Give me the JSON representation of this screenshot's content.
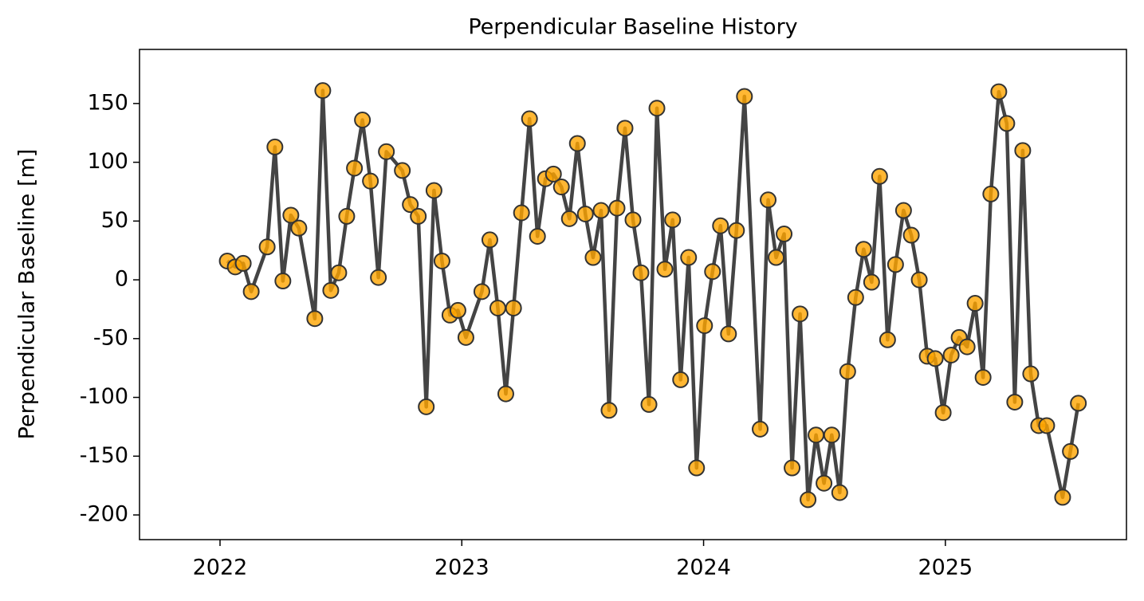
{
  "chart_data": {
    "type": "line",
    "title": "Perpendicular Baseline History",
    "ylabel": "Perpendicular Baseline [m]",
    "x": [
      2022.03,
      2022.063,
      2022.096,
      2022.129,
      2022.195,
      2022.227,
      2022.26,
      2022.293,
      2022.326,
      2022.392,
      2022.425,
      2022.458,
      2022.491,
      2022.524,
      2022.556,
      2022.589,
      2022.622,
      2022.655,
      2022.688,
      2022.754,
      2022.787,
      2022.82,
      2022.853,
      2022.885,
      2022.918,
      2022.951,
      2022.984,
      2023.017,
      2023.083,
      2023.116,
      2023.149,
      2023.182,
      2023.214,
      2023.247,
      2023.28,
      2023.313,
      2023.346,
      2023.379,
      2023.412,
      2023.445,
      2023.478,
      2023.511,
      2023.543,
      2023.576,
      2023.609,
      2023.642,
      2023.675,
      2023.708,
      2023.741,
      2023.774,
      2023.807,
      2023.84,
      2023.872,
      2023.905,
      2023.938,
      2023.971,
      2024.004,
      2024.037,
      2024.07,
      2024.103,
      2024.136,
      2024.169,
      2024.234,
      2024.267,
      2024.3,
      2024.333,
      2024.366,
      2024.399,
      2024.432,
      2024.465,
      2024.498,
      2024.53,
      2024.563,
      2024.596,
      2024.629,
      2024.662,
      2024.695,
      2024.728,
      2024.761,
      2024.794,
      2024.827,
      2024.859,
      2024.892,
      2024.925,
      2024.958,
      2024.991,
      2025.024,
      2025.057,
      2025.09,
      2025.123,
      2025.156,
      2025.188,
      2025.221,
      2025.254,
      2025.287,
      2025.32,
      2025.353,
      2025.386,
      2025.419,
      2025.485,
      2025.517,
      2025.55
    ],
    "series": [
      {
        "name": "Perpendicular Baseline",
        "color": "#ffa500",
        "line_color": "#444444",
        "values": [
          16,
          11,
          14,
          -10,
          28,
          113,
          -1,
          55,
          44,
          -33,
          161,
          -9,
          6,
          54,
          95,
          136,
          84,
          2,
          109,
          93,
          64,
          54,
          -108,
          76,
          16,
          -30,
          -26,
          -49,
          -10,
          34,
          -24,
          -97,
          -24,
          57,
          137,
          37,
          86,
          90,
          79,
          52,
          116,
          56,
          19,
          59,
          -111,
          61,
          129,
          51,
          6,
          -106,
          146,
          9,
          51,
          -85,
          19,
          -160,
          -39,
          7,
          46,
          -46,
          42,
          156,
          -127,
          68,
          19,
          39,
          -160,
          -29,
          -187,
          -132,
          -173,
          -132,
          -181,
          -78,
          -15,
          26,
          -2,
          88,
          -51,
          13,
          59,
          38,
          0,
          -65,
          -67,
          -113,
          -64,
          -49,
          -57,
          -20,
          -83,
          73,
          160,
          133,
          -104,
          110,
          -80,
          -124,
          -124,
          -185,
          -146,
          -105
        ]
      }
    ],
    "xlim": [
      2021.667,
      2025.749
    ],
    "xticks": [
      2022,
      2023,
      2024,
      2025
    ],
    "ylim": [
      -221,
      196
    ],
    "yticks": [
      -200,
      -150,
      -100,
      -50,
      0,
      50,
      100,
      150
    ],
    "grid": false
  }
}
